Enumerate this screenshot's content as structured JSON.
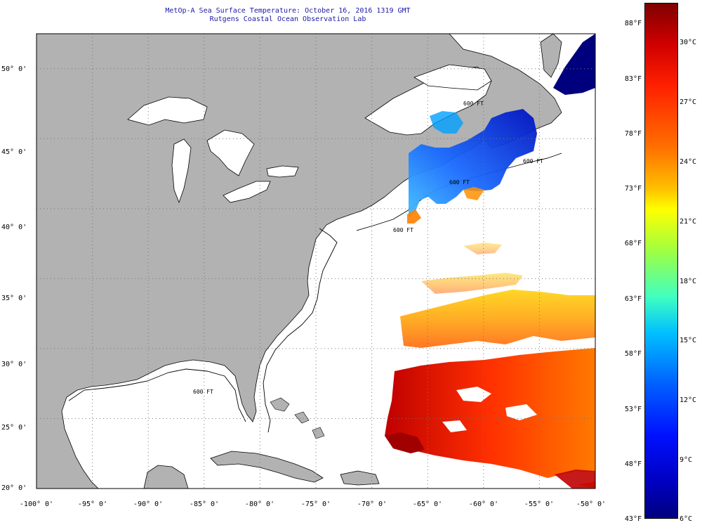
{
  "header": {
    "title": "MetOp-A Sea Surface Temperature:  October 16, 2016 1319 GMT",
    "subtitle": "Rutgens Coastal Ocean Observation Lab"
  },
  "axes": {
    "lat_labels": [
      "50° 0'",
      "45° 0'",
      "40° 0'",
      "35° 0'",
      "30° 0'",
      "25° 0'",
      "20° 0'"
    ],
    "lon_labels": [
      "-100° 0'",
      "-95° 0'",
      "-90° 0'",
      "-85° 0'",
      "-80° 0'",
      "-75° 0'",
      "-70° 0'",
      "-65° 0'",
      "-60° 0'",
      "-55° 0'",
      "-50° 0'"
    ],
    "lat_values": [
      50,
      45,
      40,
      35,
      30,
      25,
      20
    ],
    "lon_values": [
      -100,
      -95,
      -90,
      -85,
      -80,
      -75,
      -70,
      -65,
      -60,
      -55,
      -50
    ],
    "lat_range": [
      20,
      52.5
    ],
    "lon_range": [
      -100,
      -50
    ]
  },
  "contour_labels": [
    "600 FT",
    "600 FT",
    "600 FT",
    "600 FT",
    "600 FT"
  ],
  "colorbar": {
    "fahrenheit": [
      "88°F",
      "83°F",
      "78°F",
      "73°F",
      "68°F",
      "63°F",
      "58°F",
      "53°F",
      "48°F",
      "43°F"
    ],
    "celsius": [
      "30°C",
      "27°C",
      "24°C",
      "21°C",
      "18°C",
      "15°C",
      "12°C",
      "9°C",
      "6°C"
    ],
    "range_f": [
      43,
      90
    ]
  },
  "colors": {
    "land": "#b2b2b2",
    "water": "#ffffff",
    "title": "#1a1aa8",
    "cold": "#00007f",
    "warm": "#800000"
  }
}
